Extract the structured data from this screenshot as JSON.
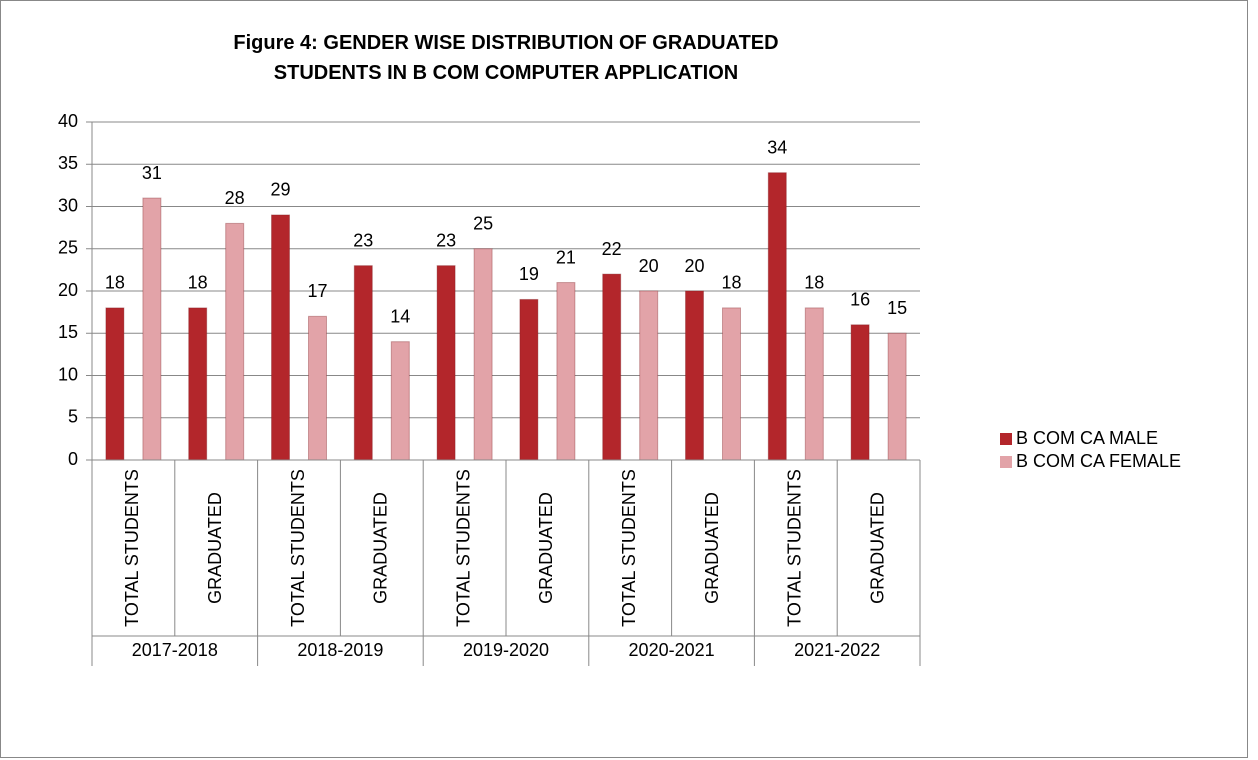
{
  "chart_data": {
    "type": "bar",
    "title": "Figure 4: GENDER WISE DISTRIBUTION OF GRADUATED STUDENTS IN B COM COMPUTER APPLICATION",
    "categories": [
      "TOTAL STUDENTS",
      "GRADUATED",
      "TOTAL STUDENTS",
      "GRADUATED",
      "TOTAL STUDENTS",
      "GRADUATED",
      "TOTAL STUDENTS",
      "GRADUATED",
      "TOTAL STUDENTS",
      "GRADUATED"
    ],
    "category_groups": [
      "2017-2018",
      "2018-2019",
      "2019-2020",
      "2020-2021",
      "2021-2022"
    ],
    "series": [
      {
        "name": "B COM CA MALE",
        "color": "#b3262b",
        "values": [
          18,
          18,
          29,
          23,
          23,
          19,
          22,
          20,
          34,
          16
        ]
      },
      {
        "name": "B COM CA FEMALE",
        "color": "#e2a3a8",
        "values": [
          31,
          28,
          17,
          14,
          25,
          21,
          20,
          18,
          18,
          15
        ]
      }
    ],
    "ylim": [
      0,
      40
    ],
    "yticks": [
      0,
      5,
      10,
      15,
      20,
      25,
      30,
      35,
      40
    ],
    "grid": true,
    "legend": "right"
  }
}
